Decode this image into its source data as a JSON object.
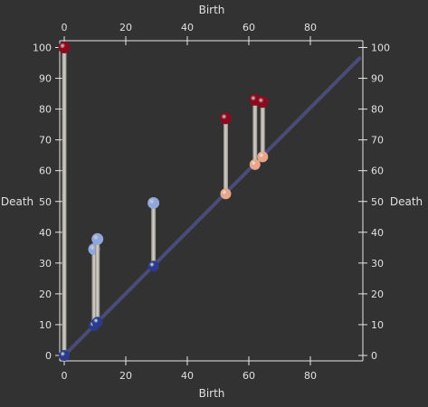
{
  "chart_data": {
    "type": "scatter",
    "subtype": "persistence-diagram",
    "xlabel_top": "Birth",
    "xlabel_bottom": "Birth",
    "ylabel_left": "Death",
    "ylabel_right": "Death",
    "xlim": [
      0,
      100
    ],
    "ylim": [
      0,
      100
    ],
    "x_ticks": [
      0,
      20,
      40,
      60,
      80
    ],
    "y_ticks": [
      0,
      10,
      20,
      30,
      40,
      50,
      60,
      70,
      80,
      90,
      100
    ],
    "grid": false,
    "diagonal": true,
    "pairs": [
      {
        "birth": 0,
        "death": 100,
        "birth_color": "#2a3a8c",
        "death_color": "#8a0a1e"
      },
      {
        "birth": 9.7,
        "death": 34.5,
        "birth_color": "#2a3a8c",
        "death_color": "#8fa8dc"
      },
      {
        "birth": 10.8,
        "death": 37.8,
        "birth_color": "#2a3a8c",
        "death_color": "#8fa8dc"
      },
      {
        "birth": 29,
        "death": 49.5,
        "birth_color": "#2a3a8c",
        "death_color": "#8fa8dc"
      },
      {
        "birth": 52.5,
        "death": 77,
        "birth_color": "#e8a58a",
        "death_color": "#8a0a1e"
      },
      {
        "birth": 62,
        "death": 83,
        "birth_color": "#e8a58a",
        "death_color": "#8a0a1e"
      },
      {
        "birth": 64.5,
        "death": 82.3,
        "birth_color": "#e8a58a",
        "death_color": "#8a0a1e"
      }
    ]
  },
  "colors": {
    "background": "#323232",
    "axis": "#e6e6e6",
    "diagonal": "#4a4c78",
    "stem": "#d8d4cc"
  }
}
